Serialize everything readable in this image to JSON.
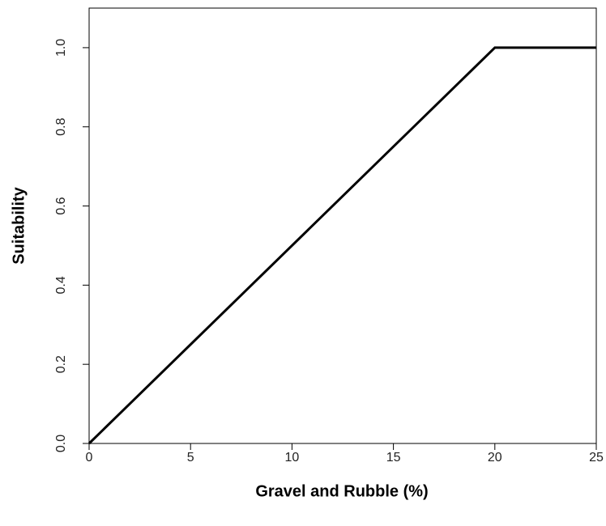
{
  "chart_data": {
    "type": "line",
    "x_label": "Gravel and Rubble (%)",
    "y_label": "Suitability",
    "x": [
      0,
      20,
      25
    ],
    "values": [
      0,
      1,
      1
    ],
    "color": "#000000",
    "xlim": [
      0,
      25
    ],
    "xticks": [
      0,
      5,
      10,
      15,
      20,
      25
    ],
    "ylim": [
      0,
      1.1
    ],
    "yticks": [
      {
        "value": 0,
        "label": "0.0"
      },
      0.2,
      0.4,
      0.6,
      0.8,
      {
        "value": 1,
        "label": "1.0"
      }
    ]
  }
}
